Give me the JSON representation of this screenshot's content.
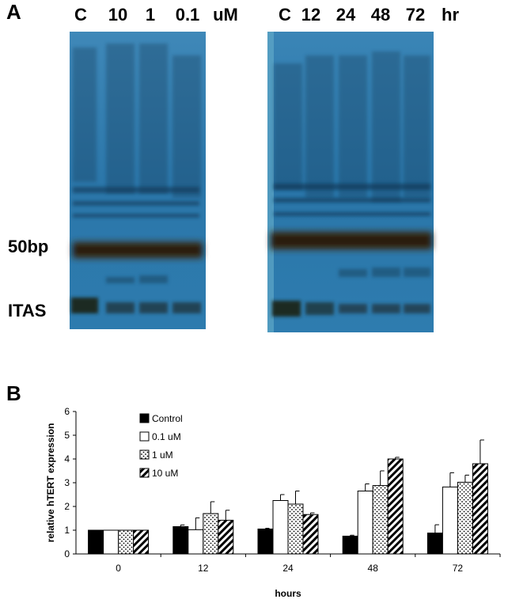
{
  "panel_a": {
    "letter": "A",
    "left_gel": {
      "lane_labels": [
        "C",
        "10",
        "1",
        "0.1"
      ],
      "unit": "uM"
    },
    "right_gel": {
      "lane_labels": [
        "C",
        "12",
        "24",
        "48",
        "72"
      ],
      "unit": "hr"
    },
    "marker_50bp": "50bp",
    "marker_itas": "ITAS",
    "gel_color": "#2f7fb0"
  },
  "panel_b": {
    "letter": "B"
  },
  "chart_data": {
    "type": "bar",
    "categories": [
      "0",
      "12",
      "24",
      "48",
      "72"
    ],
    "xlabel": "hours",
    "ylabel": "relative hTERT expression",
    "ylim": [
      0,
      6
    ],
    "yticks": [
      "0",
      "1",
      "2",
      "3",
      "4",
      "5",
      "6"
    ],
    "grid": false,
    "legend": "top-left",
    "series": [
      {
        "name": "Control",
        "values": [
          1.0,
          1.15,
          1.05,
          0.75,
          0.88
        ],
        "errors": [
          0.0,
          0.07,
          0.03,
          0.04,
          0.35
        ],
        "fill": "solid-black"
      },
      {
        "name": "0.1 uM",
        "values": [
          1.0,
          1.02,
          2.25,
          2.65,
          2.82
        ],
        "errors": [
          0.0,
          0.5,
          0.25,
          0.3,
          0.6
        ],
        "fill": "white"
      },
      {
        "name": "1 uM",
        "values": [
          1.0,
          1.7,
          2.1,
          2.88,
          3.02
        ],
        "errors": [
          0.0,
          0.5,
          0.55,
          0.62,
          0.3
        ],
        "fill": "dotted"
      },
      {
        "name": "10 uM",
        "values": [
          1.0,
          1.42,
          1.66,
          4.0,
          3.8
        ],
        "errors": [
          0.0,
          0.42,
          0.07,
          0.07,
          1.0
        ],
        "fill": "hatched"
      }
    ]
  }
}
